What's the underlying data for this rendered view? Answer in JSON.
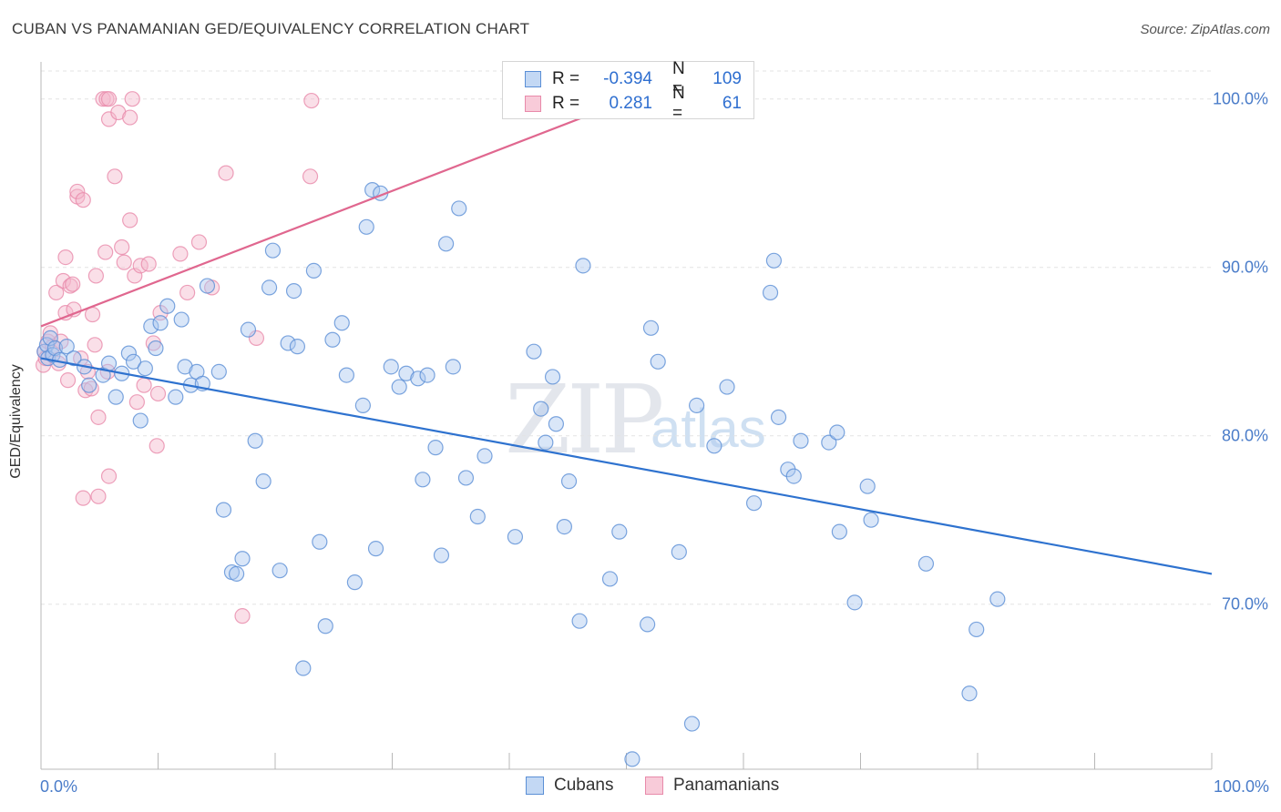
{
  "header": {
    "title": "CUBAN VS PANAMANIAN GED/EQUIVALENCY CORRELATION CHART",
    "source": "Source: ZipAtlas.com"
  },
  "watermark": {
    "zip": "ZIP",
    "atlas": "atlas"
  },
  "colors": {
    "cubans_fill": "#aac8f0",
    "cubans_stroke": "#5b8fd6",
    "cubans_line": "#2e72cf",
    "pan_fill": "#f5b8cc",
    "pan_stroke": "#e88aaa",
    "pan_line": "#e0678f",
    "grid": "#e3e3e3",
    "axis_text": "#4a7cc9"
  },
  "legend": {
    "r_label": "R =",
    "n_label": "N =",
    "rows": [
      {
        "name": "Cubans",
        "r": "-0.394",
        "n": "109"
      },
      {
        "name": "Panamanians",
        "r": "0.281",
        "n": "61"
      }
    ]
  },
  "chart_data": {
    "type": "scatter",
    "title": "CUBAN VS PANAMANIAN GED/EQUIVALENCY CORRELATION CHART",
    "xlabel": "",
    "ylabel": "GED/Equivalency",
    "xlim": [
      0,
      100
    ],
    "ylim": [
      60.2,
      102.2
    ],
    "x_tick_labels": [
      {
        "value": 0,
        "label": "0.0%"
      },
      {
        "value": 100,
        "label": "100.0%"
      }
    ],
    "y_ticks": [
      {
        "value": 70,
        "label": "70.0%"
      },
      {
        "value": 80,
        "label": "80.0%"
      },
      {
        "value": 90,
        "label": "90.0%"
      },
      {
        "value": 100,
        "label": "100.0%"
      }
    ],
    "series": [
      {
        "name": "Cubans",
        "trend": {
          "x": [
            0,
            100
          ],
          "y": [
            84.6,
            71.8
          ]
        },
        "points": [
          [
            0.3,
            85.0
          ],
          [
            0.5,
            85.4
          ],
          [
            0.6,
            84.6
          ],
          [
            0.8,
            85.8
          ],
          [
            1.0,
            84.8
          ],
          [
            1.2,
            85.2
          ],
          [
            1.6,
            84.5
          ],
          [
            2.2,
            85.3
          ],
          [
            2.8,
            84.6
          ],
          [
            3.7,
            84.1
          ],
          [
            4.1,
            83.0
          ],
          [
            5.3,
            83.6
          ],
          [
            5.8,
            84.3
          ],
          [
            6.4,
            82.3
          ],
          [
            6.9,
            83.7
          ],
          [
            7.5,
            84.9
          ],
          [
            7.9,
            84.4
          ],
          [
            8.5,
            80.9
          ],
          [
            8.9,
            84.0
          ],
          [
            9.4,
            86.5
          ],
          [
            9.8,
            85.2
          ],
          [
            10.2,
            86.7
          ],
          [
            10.8,
            87.7
          ],
          [
            11.5,
            82.3
          ],
          [
            12.0,
            86.9
          ],
          [
            12.3,
            84.1
          ],
          [
            12.8,
            83.0
          ],
          [
            13.3,
            83.8
          ],
          [
            13.8,
            83.1
          ],
          [
            14.2,
            88.9
          ],
          [
            15.2,
            83.8
          ],
          [
            15.6,
            75.6
          ],
          [
            16.3,
            71.9
          ],
          [
            16.7,
            71.8
          ],
          [
            17.2,
            72.7
          ],
          [
            17.7,
            86.3
          ],
          [
            18.3,
            79.7
          ],
          [
            19.0,
            77.3
          ],
          [
            19.5,
            88.8
          ],
          [
            19.8,
            91.0
          ],
          [
            20.4,
            72.0
          ],
          [
            21.1,
            85.5
          ],
          [
            21.6,
            88.6
          ],
          [
            21.9,
            85.3
          ],
          [
            22.4,
            66.2
          ],
          [
            23.3,
            89.8
          ],
          [
            23.8,
            73.7
          ],
          [
            24.3,
            68.7
          ],
          [
            24.9,
            85.7
          ],
          [
            25.7,
            86.7
          ],
          [
            26.1,
            83.6
          ],
          [
            26.8,
            71.3
          ],
          [
            27.5,
            81.8
          ],
          [
            27.8,
            92.4
          ],
          [
            28.3,
            94.6
          ],
          [
            28.6,
            73.3
          ],
          [
            29.0,
            94.4
          ],
          [
            29.9,
            84.1
          ],
          [
            30.6,
            82.9
          ],
          [
            31.2,
            83.7
          ],
          [
            32.2,
            83.4
          ],
          [
            32.6,
            77.4
          ],
          [
            33.0,
            83.6
          ],
          [
            33.7,
            79.3
          ],
          [
            34.2,
            72.9
          ],
          [
            34.6,
            91.4
          ],
          [
            35.2,
            84.1
          ],
          [
            35.7,
            93.5
          ],
          [
            36.3,
            77.5
          ],
          [
            37.3,
            75.2
          ],
          [
            37.9,
            78.8
          ],
          [
            40.5,
            74.0
          ],
          [
            42.1,
            85.0
          ],
          [
            42.7,
            81.6
          ],
          [
            43.1,
            79.6
          ],
          [
            43.7,
            83.5
          ],
          [
            44.0,
            80.7
          ],
          [
            44.7,
            74.6
          ],
          [
            45.1,
            77.3
          ],
          [
            46.0,
            69.0
          ],
          [
            46.3,
            90.1
          ],
          [
            48.6,
            71.5
          ],
          [
            49.4,
            74.3
          ],
          [
            50.5,
            60.8
          ],
          [
            51.8,
            68.8
          ],
          [
            52.1,
            86.4
          ],
          [
            52.7,
            84.4
          ],
          [
            54.5,
            73.1
          ],
          [
            55.6,
            62.9
          ],
          [
            56.0,
            81.8
          ],
          [
            57.5,
            79.4
          ],
          [
            58.6,
            82.9
          ],
          [
            60.9,
            76.0
          ],
          [
            62.6,
            90.4
          ],
          [
            63.0,
            81.1
          ],
          [
            62.3,
            88.5
          ],
          [
            63.8,
            78.0
          ],
          [
            64.3,
            77.6
          ],
          [
            64.9,
            79.7
          ],
          [
            67.3,
            79.6
          ],
          [
            68.0,
            80.2
          ],
          [
            68.2,
            74.3
          ],
          [
            69.5,
            70.1
          ],
          [
            70.6,
            77.0
          ],
          [
            70.9,
            75.0
          ],
          [
            75.6,
            72.4
          ],
          [
            79.3,
            64.7
          ],
          [
            79.9,
            68.5
          ],
          [
            81.7,
            70.3
          ]
        ]
      },
      {
        "name": "Panamanians",
        "trend": {
          "x": [
            0,
            50
          ],
          "y": [
            86.5,
            99.9
          ]
        },
        "points": [
          [
            0.2,
            84.2
          ],
          [
            0.3,
            85.0
          ],
          [
            0.4,
            84.6
          ],
          [
            0.6,
            85.6
          ],
          [
            0.8,
            86.1
          ],
          [
            1.0,
            85.3
          ],
          [
            1.3,
            88.5
          ],
          [
            1.5,
            84.3
          ],
          [
            1.7,
            85.6
          ],
          [
            1.9,
            89.2
          ],
          [
            2.1,
            87.3
          ],
          [
            2.1,
            90.6
          ],
          [
            2.3,
            83.3
          ],
          [
            2.5,
            88.9
          ],
          [
            2.8,
            87.5
          ],
          [
            3.1,
            94.2
          ],
          [
            3.1,
            94.5
          ],
          [
            3.4,
            84.6
          ],
          [
            3.6,
            94.0
          ],
          [
            3.8,
            82.7
          ],
          [
            4.0,
            83.8
          ],
          [
            4.3,
            82.8
          ],
          [
            4.4,
            87.2
          ],
          [
            4.6,
            85.4
          ],
          [
            4.7,
            89.5
          ],
          [
            4.9,
            76.4
          ],
          [
            4.9,
            81.1
          ],
          [
            5.3,
            100.0
          ],
          [
            5.5,
            90.9
          ],
          [
            5.6,
            100.0
          ],
          [
            5.7,
            83.8
          ],
          [
            5.8,
            77.6
          ],
          [
            5.8,
            100.0
          ],
          [
            5.8,
            98.8
          ],
          [
            6.3,
            95.4
          ],
          [
            6.6,
            99.2
          ],
          [
            6.9,
            91.2
          ],
          [
            7.1,
            90.3
          ],
          [
            7.6,
            98.9
          ],
          [
            7.6,
            92.8
          ],
          [
            7.8,
            100.0
          ],
          [
            8.0,
            89.5
          ],
          [
            8.2,
            82.0
          ],
          [
            8.5,
            90.1
          ],
          [
            8.8,
            83.0
          ],
          [
            9.2,
            90.2
          ],
          [
            9.6,
            85.5
          ],
          [
            9.9,
            79.4
          ],
          [
            10.0,
            82.5
          ],
          [
            10.2,
            87.3
          ],
          [
            11.9,
            90.8
          ],
          [
            12.5,
            88.5
          ],
          [
            13.5,
            91.5
          ],
          [
            14.6,
            88.8
          ],
          [
            15.8,
            95.6
          ],
          [
            17.2,
            69.3
          ],
          [
            18.4,
            85.8
          ],
          [
            23.0,
            95.4
          ],
          [
            23.1,
            99.9
          ],
          [
            3.6,
            76.3
          ],
          [
            2.7,
            89.0
          ]
        ]
      }
    ]
  }
}
